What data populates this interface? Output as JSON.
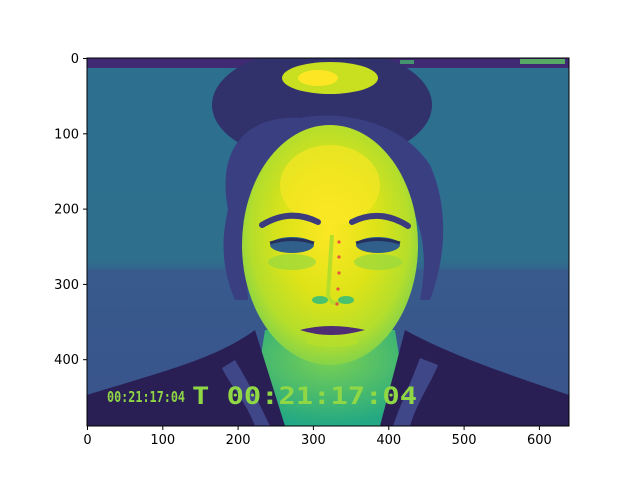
{
  "figure": {
    "x_ticks": [
      "0",
      "100",
      "200",
      "300",
      "400",
      "500",
      "600"
    ],
    "y_ticks": [
      "0",
      "100",
      "200",
      "300",
      "400"
    ],
    "x_range": [
      0,
      640
    ],
    "y_range": [
      0,
      490
    ],
    "colormap": "viridis",
    "colors": {
      "background_dark": "#3b528b",
      "background_mid": "#2c728e",
      "skin_bright": "#dde318",
      "skin_mid": "#95d840",
      "hair_dark": "#31316b",
      "jacket": "#2a1f55",
      "timestamp": "#8fd744",
      "landmark_dots": "#e8553c"
    }
  },
  "image": {
    "timestamp_small": "00:21:17:04",
    "timestamp_large": "T 00:21:17:04"
  }
}
